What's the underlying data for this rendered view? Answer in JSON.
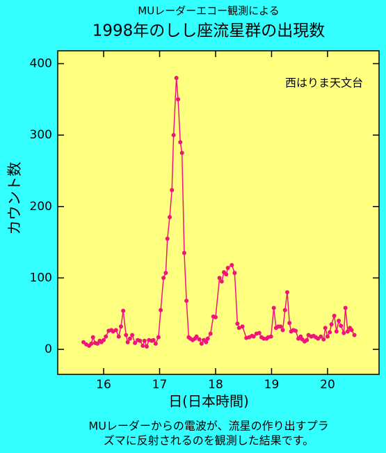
{
  "chart_data": {
    "type": "line",
    "subtitle": "MUレーダーエコー観測による",
    "title": "1998年のしし座流星群の出現数",
    "annotation": "西はりま天文台",
    "ylabel": "カウント数",
    "xlabel": "日(日本時間)",
    "footnote": [
      "MUレーダーからの電波が、流星の作り出すプラ",
      "ズマに反射されるのを観測した結果です。"
    ],
    "xlim": [
      15.18,
      20.92
    ],
    "ylim": [
      -35,
      418
    ],
    "xticks": [
      16,
      17,
      18,
      19,
      20
    ],
    "yticks": [
      0,
      100,
      200,
      300,
      400
    ],
    "series": [
      {
        "color": "#f0147a",
        "x": [
          15.64,
          15.69,
          15.74,
          15.78,
          15.81,
          15.85,
          15.89,
          15.93,
          15.96,
          16.0,
          16.04,
          16.09,
          16.14,
          16.17,
          16.22,
          16.27,
          16.31,
          16.35,
          16.4,
          16.43,
          16.47,
          16.51,
          16.56,
          16.61,
          16.65,
          16.7,
          16.73,
          16.77,
          16.81,
          16.86,
          16.89,
          16.93,
          16.98,
          17.02,
          17.07,
          17.11,
          17.14,
          17.18,
          17.22,
          17.25,
          17.3,
          17.33,
          17.37,
          17.4,
          17.44,
          17.48,
          17.52,
          17.55,
          17.59,
          17.63,
          17.66,
          17.71,
          17.75,
          17.79,
          17.83,
          17.86,
          17.91,
          17.96,
          18.0,
          18.07,
          18.11,
          18.15,
          18.19,
          18.22,
          18.29,
          18.34,
          18.39,
          18.42,
          18.48,
          18.55,
          18.6,
          18.65,
          18.68,
          18.73,
          18.78,
          18.82,
          18.86,
          18.91,
          18.94,
          18.99,
          19.04,
          19.08,
          19.12,
          19.16,
          19.2,
          19.24,
          19.28,
          19.32,
          19.35,
          19.39,
          19.43,
          19.48,
          19.52,
          19.55,
          19.59,
          19.63,
          19.66,
          19.71,
          19.75,
          19.79,
          19.83,
          19.88,
          19.93,
          19.96,
          20.0,
          20.04,
          20.07,
          20.12,
          20.16,
          20.2,
          20.24,
          20.29,
          20.32,
          20.36,
          20.4,
          20.43,
          20.48
        ],
        "values": [
          10,
          7,
          5,
          8,
          17,
          9,
          8,
          12,
          10,
          13,
          18,
          26,
          27,
          25,
          27,
          18,
          32,
          54,
          20,
          10,
          15,
          20,
          9,
          13,
          12,
          5,
          12,
          4,
          13,
          12,
          13,
          8,
          17,
          55,
          100,
          107,
          155,
          185,
          223,
          300,
          380,
          350,
          290,
          275,
          135,
          68,
          17,
          15,
          13,
          15,
          18,
          14,
          8,
          13,
          10,
          15,
          22,
          46,
          45,
          100,
          95,
          108,
          105,
          114,
          118,
          107,
          36,
          30,
          32,
          16,
          17,
          19,
          18,
          22,
          23,
          17,
          15,
          15,
          17,
          18,
          58,
          30,
          32,
          32,
          27,
          55,
          80,
          37,
          25,
          27,
          26,
          15,
          18,
          14,
          11,
          13,
          20,
          18,
          19,
          17,
          15,
          18,
          14,
          30,
          18,
          24,
          35,
          47,
          25,
          40,
          33,
          23,
          58,
          25,
          30,
          27,
          20
        ]
      }
    ]
  }
}
